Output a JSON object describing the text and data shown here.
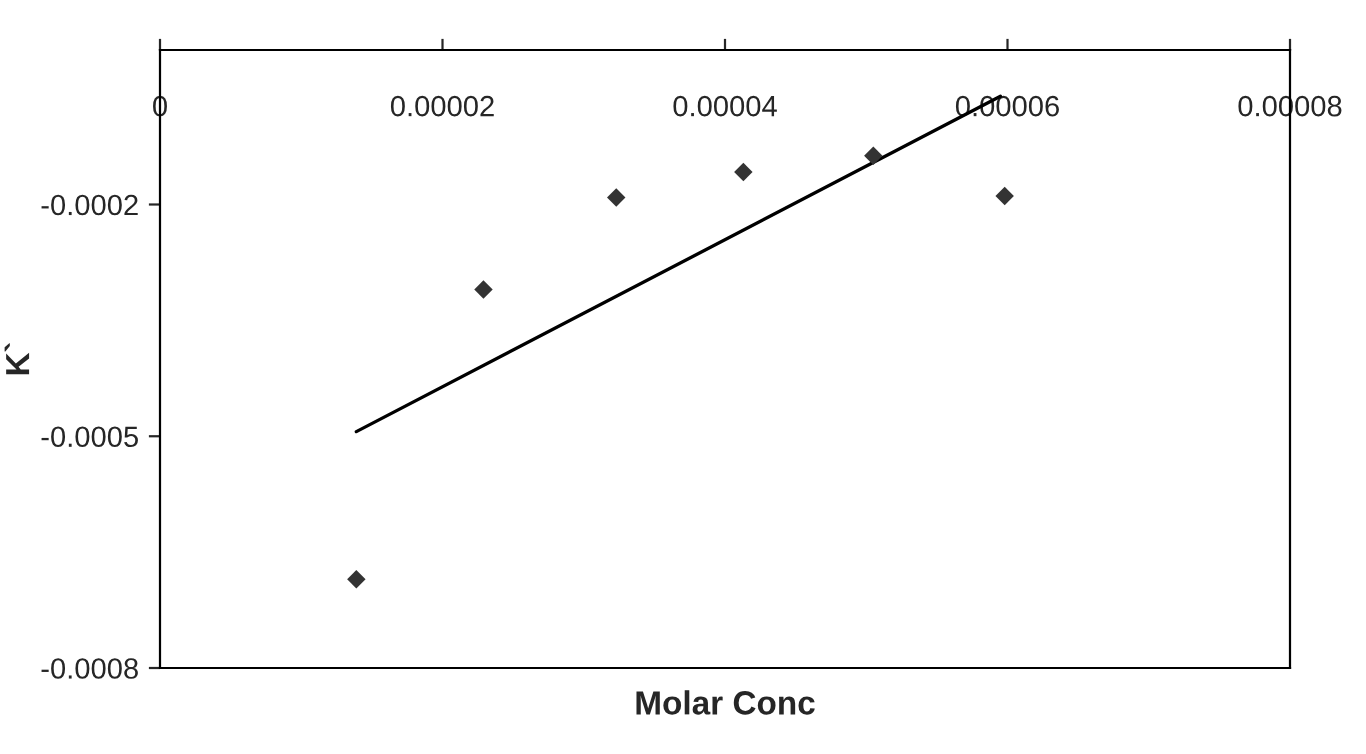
{
  "chart_data": {
    "type": "scatter",
    "xlabel": "Molar Conc",
    "ylabel": "K`",
    "xlim": [
      0,
      8e-05
    ],
    "xticks": [
      {
        "value": 0,
        "label": "0"
      },
      {
        "value": 2e-05,
        "label": "0.00002"
      },
      {
        "value": 4e-05,
        "label": "0.00004"
      },
      {
        "value": 6e-05,
        "label": "0.00006"
      },
      {
        "value": 8e-05,
        "label": "0.00008"
      }
    ],
    "ylim": [
      -0.0008,
      0
    ],
    "yticks": [
      {
        "value": -0.0008,
        "label": "-0.0008"
      },
      {
        "value": -0.0005,
        "label": "-0.0005"
      },
      {
        "value": -0.0002,
        "label": "-0.0002"
      }
    ],
    "grid": false,
    "series": [
      {
        "marker": "diamond",
        "color": "#333333",
        "x": [
          1.39e-05,
          2.29e-05,
          3.23e-05,
          4.13e-05,
          5.05e-05,
          5.98e-05
        ],
        "values": [
          -0.000685,
          -0.00031,
          -0.000191,
          -0.000158,
          -0.000137,
          -0.000189
        ]
      },
      {
        "type": "line",
        "marker": "none",
        "color": "#000000",
        "x": [
          1.39e-05,
          5.95e-05
        ],
        "values": [
          -0.000494,
          -6e-05
        ]
      }
    ]
  }
}
